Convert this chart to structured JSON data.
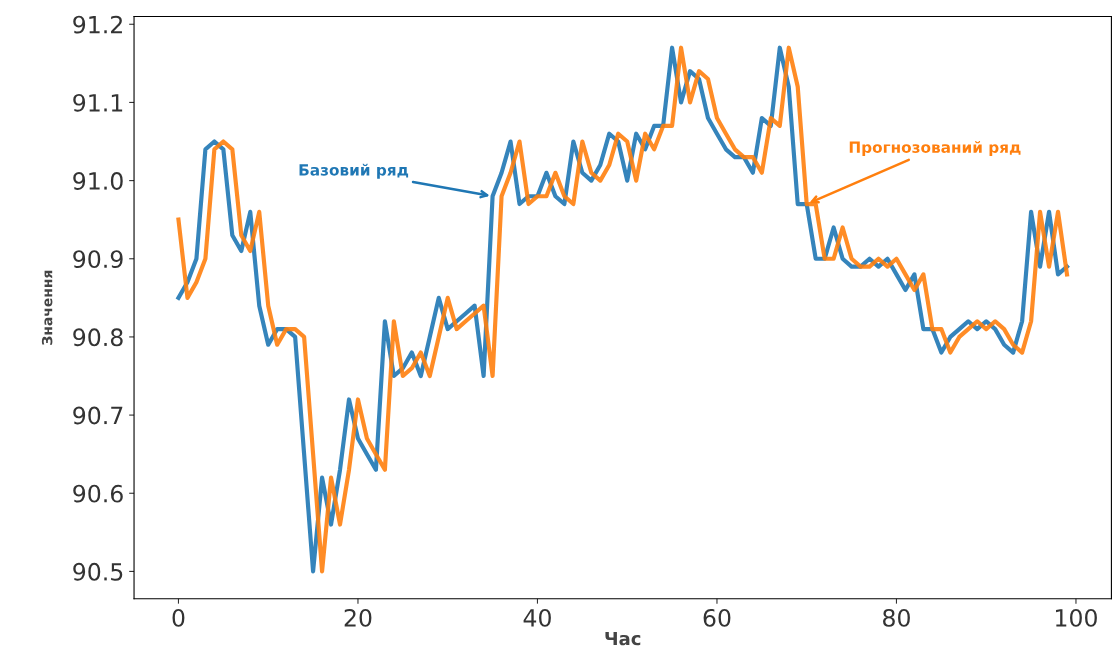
{
  "chart_data": {
    "type": "line",
    "xlabel": "Час",
    "ylabel": "Значення",
    "x": [
      0,
      1,
      2,
      3,
      4,
      5,
      6,
      7,
      8,
      9,
      10,
      11,
      12,
      13,
      14,
      15,
      16,
      17,
      18,
      19,
      20,
      21,
      22,
      23,
      24,
      25,
      26,
      27,
      28,
      29,
      30,
      31,
      32,
      33,
      34,
      35,
      36,
      37,
      38,
      39,
      40,
      41,
      42,
      43,
      44,
      45,
      46,
      47,
      48,
      49,
      50,
      51,
      52,
      53,
      54,
      55,
      56,
      57,
      58,
      59,
      60,
      61,
      62,
      63,
      64,
      65,
      66,
      67,
      68,
      69,
      70,
      71,
      72,
      73,
      74,
      75,
      76,
      77,
      78,
      79,
      80,
      81,
      82,
      83,
      84,
      85,
      86,
      87,
      88,
      89,
      90,
      91,
      92,
      93,
      94,
      95,
      96,
      97,
      98,
      99
    ],
    "series": [
      {
        "color": "#1f77b4",
        "values": [
          90.85,
          90.87,
          90.9,
          91.04,
          91.05,
          91.04,
          90.93,
          90.91,
          90.96,
          90.84,
          90.79,
          90.81,
          90.81,
          90.8,
          90.65,
          90.5,
          90.62,
          90.56,
          90.63,
          90.72,
          90.67,
          90.65,
          90.63,
          90.82,
          90.75,
          90.76,
          90.78,
          90.75,
          90.8,
          90.85,
          90.81,
          90.82,
          90.83,
          90.84,
          90.75,
          90.98,
          91.01,
          91.05,
          90.97,
          90.98,
          90.98,
          91.01,
          90.98,
          90.97,
          91.05,
          91.01,
          91.0,
          91.02,
          91.06,
          91.05,
          91.0,
          91.06,
          91.04,
          91.07,
          91.07,
          91.17,
          91.1,
          91.14,
          91.13,
          91.08,
          91.06,
          91.04,
          91.03,
          91.03,
          91.01,
          91.08,
          91.07,
          91.17,
          91.12,
          90.97,
          90.97,
          90.9,
          90.9,
          90.94,
          90.9,
          90.89,
          90.89,
          90.9,
          90.89,
          90.9,
          90.88,
          90.86,
          90.88,
          90.81,
          90.81,
          90.78,
          90.8,
          90.81,
          90.82,
          90.81,
          90.82,
          90.81,
          90.79,
          90.78,
          90.82,
          90.96,
          90.89,
          90.96,
          90.88,
          90.89
        ]
      },
      {
        "color": "#ff7f0e",
        "values": [
          90.95,
          90.85,
          90.87,
          90.9,
          91.04,
          91.05,
          91.04,
          90.93,
          90.91,
          90.96,
          90.84,
          90.79,
          90.81,
          90.81,
          90.8,
          90.65,
          90.5,
          90.62,
          90.56,
          90.63,
          90.72,
          90.67,
          90.65,
          90.63,
          90.82,
          90.75,
          90.76,
          90.78,
          90.75,
          90.8,
          90.85,
          90.81,
          90.82,
          90.83,
          90.84,
          90.75,
          90.98,
          91.01,
          91.05,
          90.97,
          90.98,
          90.98,
          91.01,
          90.98,
          90.97,
          91.05,
          91.01,
          91.0,
          91.02,
          91.06,
          91.05,
          91.0,
          91.06,
          91.04,
          91.07,
          91.07,
          91.17,
          91.1,
          91.14,
          91.13,
          91.08,
          91.06,
          91.04,
          91.03,
          91.03,
          91.01,
          91.08,
          91.07,
          91.17,
          91.12,
          90.97,
          90.97,
          90.9,
          90.9,
          90.94,
          90.9,
          90.89,
          90.89,
          90.9,
          90.89,
          90.9,
          90.88,
          90.86,
          90.88,
          90.81,
          90.81,
          90.78,
          90.8,
          90.81,
          90.82,
          90.81,
          90.82,
          90.81,
          90.79,
          90.78,
          90.82,
          90.96,
          90.89,
          90.96,
          90.88
        ]
      }
    ],
    "xlim": [
      -4.95,
      103.95
    ],
    "ylim": [
      90.465,
      91.21
    ],
    "xticks": [
      0,
      20,
      40,
      60,
      80,
      100
    ],
    "yticks": [
      90.5,
      90.6,
      90.7,
      90.8,
      90.9,
      {
        "value": 91.0,
        "label": "91.0"
      },
      91.1,
      91.2
    ],
    "annotations": [
      {
        "text": "Базовий ряд",
        "x": 35,
        "y": 90.98
      },
      {
        "text": "Прогнозований ряд",
        "x": 70,
        "y": 90.97
      }
    ],
    "marker": "none",
    "line_style": "solid"
  }
}
